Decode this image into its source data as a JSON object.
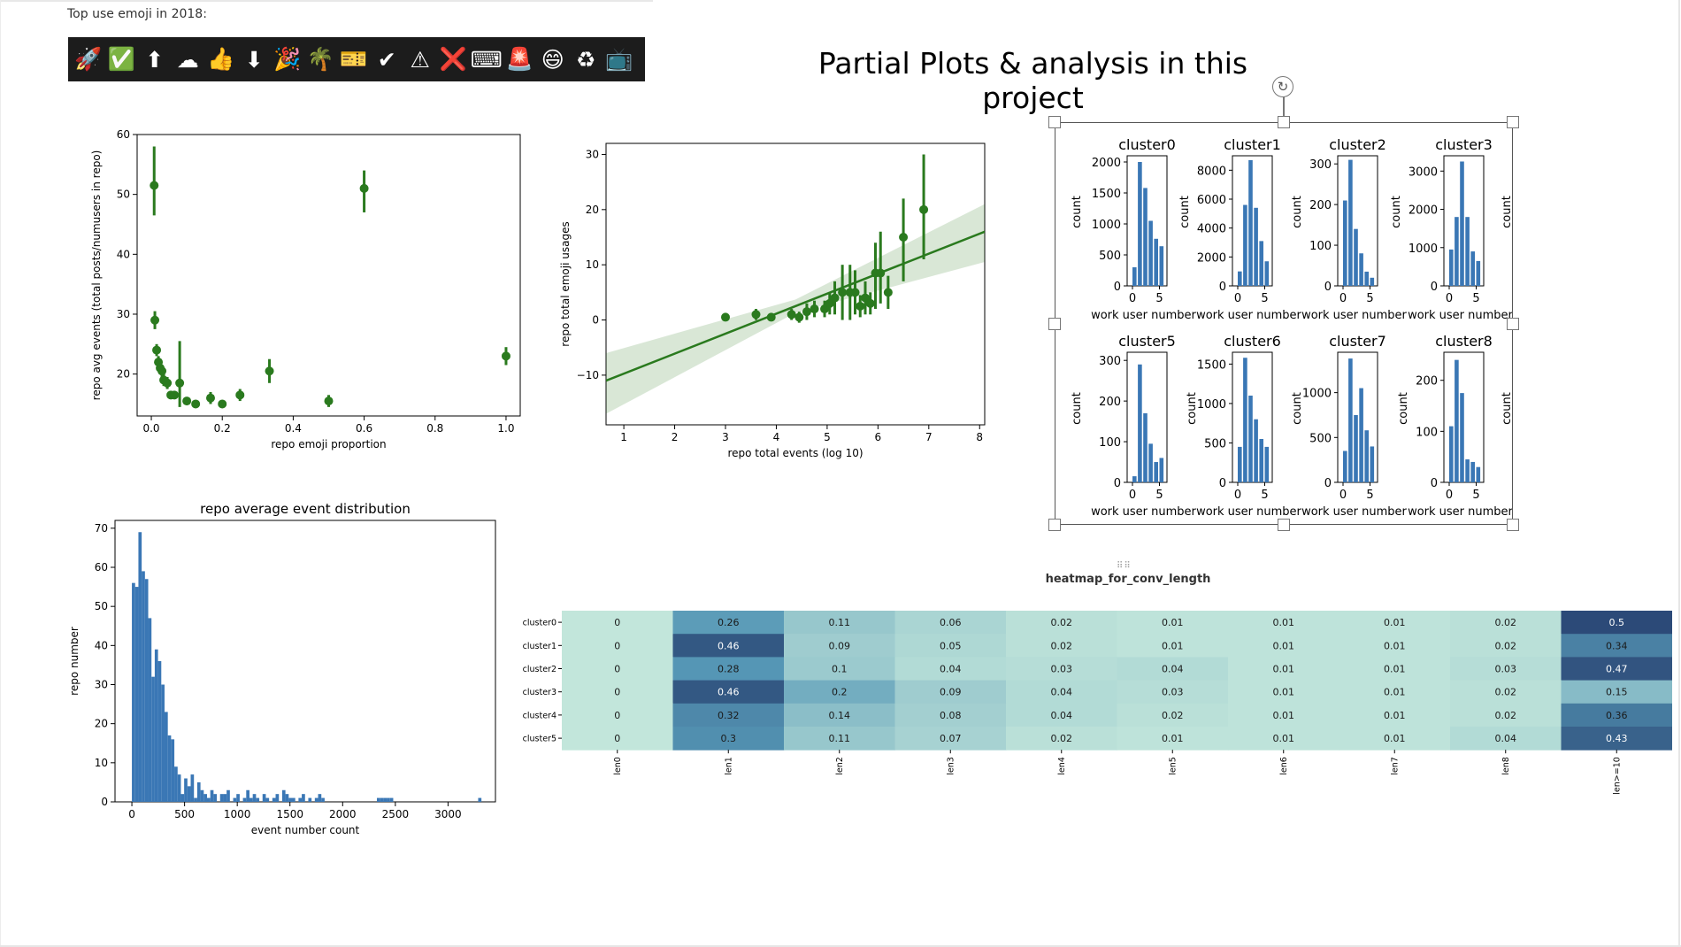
{
  "emoji_caption": "Top use emoji in 2018:",
  "emoji_icons": [
    "rocket-icon",
    "check-mark-button-icon",
    "up-arrow-icon",
    "cloud-icon",
    "thumbs-up-icon",
    "down-arrow-icon",
    "party-popper-icon",
    "palm-tree-icon",
    "ticket-icon",
    "check-mark-icon",
    "warning-icon",
    "cross-mark-icon",
    "keyboard-icon",
    "siren-icon",
    "grinning-face-icon",
    "recycle-icon",
    "television-icon"
  ],
  "emoji_glyphs": [
    "🚀",
    "✅",
    "⬆",
    "☁",
    "👍",
    "⬇",
    "🎉",
    "🌴",
    "🎫",
    "✔",
    "⚠",
    "❌",
    "⌨",
    "🚨",
    "😄",
    "♻",
    "📺"
  ],
  "page_title": "Partial Plots & analysis in this project",
  "heatmap_title": "heatmap_for_conv_length",
  "chart_data": [
    {
      "id": "emoji_proportion",
      "type": "scatter",
      "xlabel": "repo emoji proportion",
      "ylabel": "repo avg events (total posts/numusers in repo)",
      "xlim": [
        -0.04,
        1.04
      ],
      "ylim": [
        13,
        60
      ],
      "xticks": [
        0.0,
        0.2,
        0.4,
        0.6,
        0.8,
        1.0
      ],
      "xtick_labels": [
        "0.0",
        "0.2",
        "0.4",
        "0.6",
        "0.8",
        "1.0"
      ],
      "yticks": [
        20,
        30,
        40,
        50,
        60
      ],
      "ytick_labels": [
        "20",
        "30",
        "40",
        "50",
        "60"
      ],
      "color": "#2a7a1e",
      "points": [
        {
          "x": 0.008,
          "y": 51.5,
          "lo": 46.5,
          "hi": 58
        },
        {
          "x": 0.01,
          "y": 29,
          "lo": 27.5,
          "hi": 30.5
        },
        {
          "x": 0.015,
          "y": 24,
          "lo": 23,
          "hi": 25
        },
        {
          "x": 0.02,
          "y": 22,
          "lo": 21,
          "hi": 23
        },
        {
          "x": 0.025,
          "y": 21,
          "lo": 20,
          "hi": 22
        },
        {
          "x": 0.03,
          "y": 20.5,
          "lo": 19.5,
          "hi": 21.5
        },
        {
          "x": 0.035,
          "y": 19,
          "lo": 18,
          "hi": 20
        },
        {
          "x": 0.045,
          "y": 18.5,
          "lo": 17.5,
          "hi": 19.5
        },
        {
          "x": 0.055,
          "y": 16.5,
          "lo": 16,
          "hi": 17
        },
        {
          "x": 0.065,
          "y": 16.5,
          "lo": 16,
          "hi": 17
        },
        {
          "x": 0.08,
          "y": 18.5,
          "lo": 14.5,
          "hi": 25.5
        },
        {
          "x": 0.1,
          "y": 15.5,
          "lo": 15,
          "hi": 16
        },
        {
          "x": 0.125,
          "y": 15,
          "lo": 14.5,
          "hi": 15.5
        },
        {
          "x": 0.167,
          "y": 16,
          "lo": 15,
          "hi": 17
        },
        {
          "x": 0.2,
          "y": 15,
          "lo": 14.5,
          "hi": 15.5
        },
        {
          "x": 0.25,
          "y": 16.5,
          "lo": 15.5,
          "hi": 17.5
        },
        {
          "x": 0.333,
          "y": 20.5,
          "lo": 18.5,
          "hi": 22.5
        },
        {
          "x": 0.5,
          "y": 15.5,
          "lo": 14.5,
          "hi": 16.5
        },
        {
          "x": 0.6,
          "y": 51,
          "lo": 47,
          "hi": 54
        },
        {
          "x": 1.0,
          "y": 23,
          "lo": 21.5,
          "hi": 24.5
        }
      ]
    },
    {
      "id": "emoji_vs_events",
      "type": "scatter",
      "xlabel": "repo total events (log 10)",
      "ylabel": "repo total emoji usages",
      "xlim": [
        0.65,
        8.1
      ],
      "ylim": [
        -19,
        32
      ],
      "xticks": [
        1,
        2,
        3,
        4,
        5,
        6,
        7,
        8
      ],
      "xtick_labels": [
        "1",
        "2",
        "3",
        "4",
        "5",
        "6",
        "7",
        "8"
      ],
      "yticks": [
        -10,
        0,
        10,
        20,
        30
      ],
      "ytick_labels": [
        "−10",
        "0",
        "10",
        "20",
        "30"
      ],
      "color": "#2a7a1e",
      "regression": {
        "x0": 0.65,
        "y0": -11,
        "x1": 8.1,
        "y1": 16,
        "band_lo0": -17,
        "band_hi0": -6,
        "band_lo1": 10.5,
        "band_hi1": 21
      },
      "points": [
        {
          "x": 3.0,
          "y": 0.5,
          "lo": 0.5,
          "hi": 0.5
        },
        {
          "x": 3.6,
          "y": 1,
          "lo": 0,
          "hi": 2
        },
        {
          "x": 3.9,
          "y": 0.5,
          "lo": 0.5,
          "hi": 0.5
        },
        {
          "x": 4.3,
          "y": 1,
          "lo": 0,
          "hi": 2
        },
        {
          "x": 4.45,
          "y": 0.5,
          "lo": -0.5,
          "hi": 1.5
        },
        {
          "x": 4.6,
          "y": 1.5,
          "lo": 0,
          "hi": 3
        },
        {
          "x": 4.75,
          "y": 2,
          "lo": 0.5,
          "hi": 3.5
        },
        {
          "x": 4.95,
          "y": 2,
          "lo": 0.5,
          "hi": 3.5
        },
        {
          "x": 5.05,
          "y": 3,
          "lo": 1,
          "hi": 5
        },
        {
          "x": 5.15,
          "y": 4,
          "lo": 1,
          "hi": 7
        },
        {
          "x": 5.3,
          "y": 5,
          "lo": 0,
          "hi": 10
        },
        {
          "x": 5.45,
          "y": 5,
          "lo": 0,
          "hi": 10
        },
        {
          "x": 5.55,
          "y": 5,
          "lo": 1,
          "hi": 9
        },
        {
          "x": 5.65,
          "y": 2.5,
          "lo": 0.5,
          "hi": 4.5
        },
        {
          "x": 5.75,
          "y": 4,
          "lo": 1,
          "hi": 7
        },
        {
          "x": 5.85,
          "y": 3,
          "lo": 1,
          "hi": 5
        },
        {
          "x": 5.95,
          "y": 8.5,
          "lo": 2,
          "hi": 14
        },
        {
          "x": 6.05,
          "y": 8.5,
          "lo": 3,
          "hi": 16
        },
        {
          "x": 6.2,
          "y": 5,
          "lo": 2,
          "hi": 8
        },
        {
          "x": 6.5,
          "y": 15,
          "lo": 7,
          "hi": 22
        },
        {
          "x": 6.9,
          "y": 20,
          "lo": 11,
          "hi": 30
        }
      ]
    },
    {
      "id": "avg_event_distribution",
      "type": "bar",
      "title": "repo average event distribution",
      "xlabel": "event number count",
      "ylabel": "repo number",
      "xlim": [
        -160,
        3450
      ],
      "ylim": [
        0,
        72
      ],
      "bin_width": 31,
      "bin_start": 0,
      "xticks": [
        0,
        500,
        1000,
        1500,
        2000,
        2500,
        3000
      ],
      "xtick_labels": [
        "0",
        "500",
        "1000",
        "1500",
        "2000",
        "2500",
        "3000"
      ],
      "yticks": [
        0,
        10,
        20,
        30,
        40,
        50,
        60,
        70
      ],
      "ytick_labels": [
        "0",
        "10",
        "20",
        "30",
        "40",
        "50",
        "60",
        "70"
      ],
      "color": "#3a77b5",
      "values": [
        56,
        55,
        69,
        59,
        57,
        47,
        32,
        39,
        36,
        30,
        23,
        17,
        16,
        9,
        7,
        2,
        6,
        4,
        7,
        1,
        5,
        3,
        2,
        1,
        3,
        2,
        0,
        2,
        2,
        3,
        0,
        1,
        2,
        0,
        1,
        3,
        1,
        2,
        1,
        0,
        2,
        1,
        0,
        1,
        2,
        0,
        3,
        2,
        1,
        1,
        0,
        1,
        2,
        0,
        1,
        0,
        1,
        2,
        1,
        0,
        0,
        0,
        0,
        0,
        0,
        0,
        0,
        0,
        0,
        0,
        0,
        0,
        0,
        0,
        0,
        1,
        1,
        1,
        1,
        1,
        0,
        0,
        0,
        0,
        0,
        0,
        0,
        0,
        0,
        0,
        0,
        0,
        0,
        0,
        0,
        0,
        0,
        0,
        0,
        0,
        0,
        0,
        0,
        0,
        0,
        0,
        1
      ]
    },
    {
      "id": "cluster_histograms",
      "type": "bar",
      "xlabel": "work user number",
      "ylabel": "count",
      "panels": [
        {
          "title": "cluster0",
          "ymax": 2100,
          "yticks": [
            0,
            500,
            1000,
            1500,
            2000
          ],
          "ytick_labels": [
            "0",
            "500",
            "1000",
            "1500",
            "2000"
          ],
          "values": [
            300,
            2000,
            1580,
            1050,
            760,
            640
          ]
        },
        {
          "title": "cluster1",
          "ymax": 9000,
          "yticks": [
            0,
            2000,
            4000,
            6000,
            8000
          ],
          "ytick_labels": [
            "0",
            "2000",
            "4000",
            "6000",
            "8000"
          ],
          "values": [
            1000,
            5600,
            8700,
            5400,
            3100,
            1700
          ]
        },
        {
          "title": "cluster2",
          "ymax": 320,
          "yticks": [
            0,
            100,
            200,
            300
          ],
          "ytick_labels": [
            "0",
            "100",
            "200",
            "300"
          ],
          "values": [
            210,
            310,
            140,
            80,
            35,
            20
          ]
        },
        {
          "title": "cluster3",
          "ymax": 3400,
          "yticks": [
            0,
            1000,
            2000,
            3000
          ],
          "ytick_labels": [
            "0",
            "1000",
            "2000",
            "3000"
          ],
          "values": [
            950,
            1800,
            3250,
            1800,
            900,
            650
          ]
        },
        {
          "title": "cluster5",
          "ymax": 320,
          "yticks": [
            0,
            100,
            200,
            300
          ],
          "ytick_labels": [
            "0",
            "100",
            "200",
            "300"
          ],
          "values": [
            15,
            290,
            170,
            95,
            50,
            60
          ]
        },
        {
          "title": "cluster6",
          "ymax": 1650,
          "yticks": [
            0,
            500,
            1000,
            1500
          ],
          "ytick_labels": [
            "0",
            "500",
            "1000",
            "1500"
          ],
          "values": [
            450,
            1580,
            1100,
            800,
            550,
            450
          ]
        },
        {
          "title": "cluster7",
          "ymax": 1450,
          "yticks": [
            0,
            500,
            1000
          ],
          "ytick_labels": [
            "0",
            "500",
            "1000"
          ],
          "values": [
            350,
            1380,
            750,
            1050,
            580,
            400
          ]
        },
        {
          "title": "cluster8",
          "ymax": 255,
          "yticks": [
            0,
            100,
            200
          ],
          "ytick_labels": [
            "0",
            "100",
            "200"
          ],
          "values": [
            110,
            240,
            175,
            45,
            40,
            30
          ]
        }
      ],
      "xticks": [
        0,
        5
      ],
      "xtick_labels": [
        "0",
        "5"
      ],
      "color": "#3a77b5"
    },
    {
      "id": "conv_length_heatmap",
      "type": "heatmap",
      "title": "heatmap_for_conv_length",
      "rows": [
        "cluster0",
        "cluster1",
        "cluster2",
        "cluster3",
        "cluster4",
        "cluster5"
      ],
      "columns": [
        "len0",
        "len1",
        "len2",
        "len3",
        "len4",
        "len5",
        "len6",
        "len7",
        "len8",
        "len>=10"
      ],
      "values": [
        [
          0,
          0.26,
          0.11,
          0.06,
          0.02,
          0.01,
          0.01,
          0.01,
          0.02,
          0.5
        ],
        [
          0,
          0.46,
          0.09,
          0.05,
          0.02,
          0.01,
          0.01,
          0.01,
          0.02,
          0.34
        ],
        [
          0,
          0.28,
          0.1,
          0.04,
          0.03,
          0.04,
          0.01,
          0.01,
          0.03,
          0.47
        ],
        [
          0,
          0.46,
          0.2,
          0.09,
          0.04,
          0.03,
          0.01,
          0.01,
          0.02,
          0.15
        ],
        [
          0,
          0.32,
          0.14,
          0.08,
          0.04,
          0.02,
          0.01,
          0.01,
          0.02,
          0.36
        ],
        [
          0,
          0.3,
          0.11,
          0.07,
          0.02,
          0.01,
          0.01,
          0.01,
          0.04,
          0.43
        ]
      ],
      "color_low": "#c2e6db",
      "color_high": "#2c4a78"
    }
  ]
}
